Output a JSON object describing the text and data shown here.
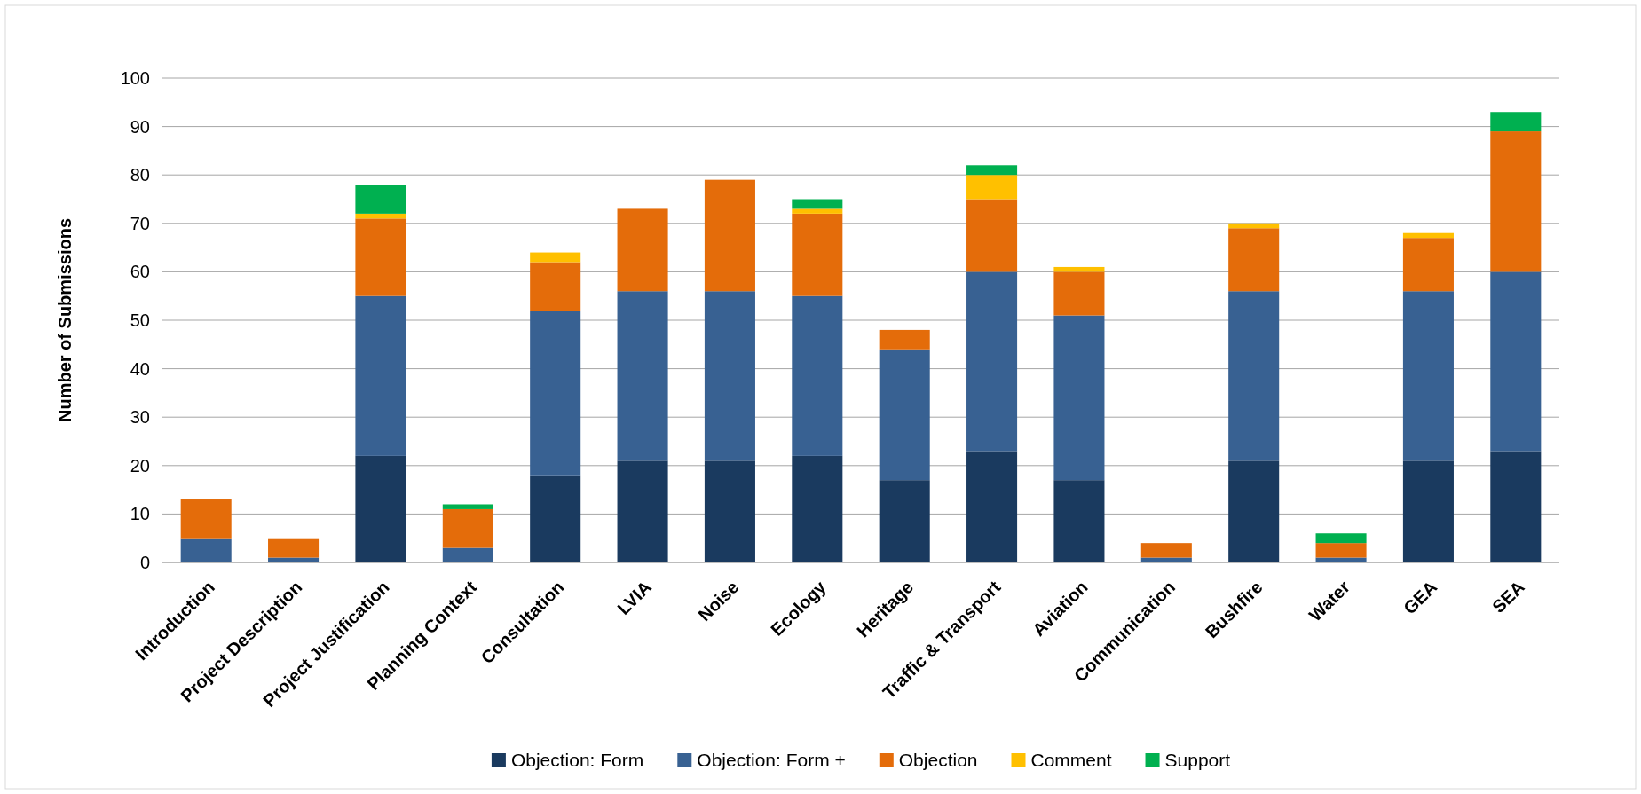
{
  "chart_data": {
    "type": "bar",
    "stacked": true,
    "ylabel": "Number of Submissions",
    "categories": [
      "Introduction",
      "Project Description",
      "Project Justification",
      "Planning Context",
      "Consultation",
      "LVIA",
      "Noise",
      "Ecology",
      "Heritage",
      "Traffic & Transport",
      "Aviation",
      "Communication",
      "Bushfire",
      "Water",
      "GEA",
      "SEA"
    ],
    "series": [
      {
        "name": "Objection: Form",
        "color": "#1a3a5f",
        "values": [
          0,
          0,
          22,
          0,
          18,
          21,
          21,
          22,
          17,
          23,
          17,
          0,
          21,
          0,
          21,
          23
        ]
      },
      {
        "name": "Objection: Form +",
        "color": "#386192",
        "values": [
          5,
          1,
          33,
          3,
          34,
          35,
          35,
          33,
          27,
          37,
          34,
          1,
          35,
          1,
          35,
          37
        ]
      },
      {
        "name": "Objection",
        "color": "#e46c0a",
        "values": [
          8,
          4,
          16,
          8,
          10,
          17,
          23,
          17,
          4,
          15,
          9,
          3,
          13,
          3,
          11,
          29
        ]
      },
      {
        "name": "Comment",
        "color": "#ffc000",
        "values": [
          0,
          0,
          1,
          0,
          2,
          0,
          0,
          1,
          0,
          5,
          1,
          0,
          1,
          0,
          1,
          0
        ]
      },
      {
        "name": "Support",
        "color": "#00b050",
        "values": [
          0,
          0,
          6,
          1,
          0,
          0,
          0,
          2,
          0,
          2,
          0,
          0,
          0,
          2,
          0,
          4
        ]
      }
    ],
    "ylim": [
      0,
      100
    ],
    "yticks": [
      0,
      10,
      20,
      30,
      40,
      50,
      60,
      70,
      80,
      90,
      100
    ],
    "grid": "y",
    "legend": "bottom"
  }
}
